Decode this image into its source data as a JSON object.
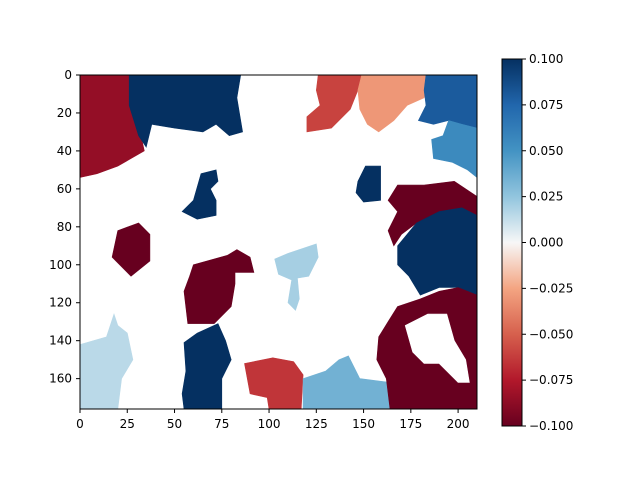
{
  "chart_data": {
    "type": "heatmap",
    "title": "",
    "xlabel": "",
    "ylabel": "",
    "colormap": "RdBu",
    "xlim": [
      0,
      210
    ],
    "ylim": [
      176,
      0
    ],
    "x_ticks": [
      0,
      25,
      50,
      75,
      100,
      125,
      150,
      175,
      200
    ],
    "y_ticks": [
      0,
      20,
      40,
      60,
      80,
      100,
      120,
      140,
      160
    ],
    "x_tick_labels": [
      "0",
      "25",
      "50",
      "75",
      "100",
      "125",
      "150",
      "175",
      "200"
    ],
    "y_tick_labels": [
      "0",
      "20",
      "40",
      "60",
      "80",
      "100",
      "120",
      "140",
      "160"
    ],
    "colorbar": {
      "range": [
        -0.1,
        0.1
      ],
      "ticks": [
        0.1,
        0.075,
        0.05,
        0.025,
        0.0,
        -0.025,
        -0.05,
        -0.075,
        -0.1
      ],
      "tick_labels": [
        "0.100",
        "0.075",
        "0.050",
        "0.025",
        "0.000",
        "−0.025",
        "−0.050",
        "−0.075",
        "−0.100"
      ]
    },
    "background_value": 0.0,
    "regions": [
      {
        "name": "top-left-red",
        "value": -0.085,
        "poly": [
          [
            0,
            0
          ],
          [
            29,
            0
          ],
          [
            26,
            14
          ],
          [
            31,
            26
          ],
          [
            34,
            40
          ],
          [
            20,
            48
          ],
          [
            9,
            52
          ],
          [
            0,
            54
          ]
        ]
      },
      {
        "name": "top-navy",
        "value": 0.1,
        "poly": [
          [
            26,
            0
          ],
          [
            85,
            0
          ],
          [
            83,
            12
          ],
          [
            86,
            30
          ],
          [
            79,
            32
          ],
          [
            72,
            26
          ],
          [
            65,
            30
          ],
          [
            50,
            28
          ],
          [
            38,
            26
          ],
          [
            35,
            38
          ],
          [
            31,
            32
          ],
          [
            26,
            16
          ]
        ]
      },
      {
        "name": "top-coral",
        "value": -0.06,
        "poly": [
          [
            126,
            0
          ],
          [
            149,
            0
          ],
          [
            147,
            8
          ],
          [
            143,
            18
          ],
          [
            133,
            28
          ],
          [
            120,
            30
          ],
          [
            120,
            22
          ],
          [
            127,
            16
          ],
          [
            125,
            8
          ]
        ]
      },
      {
        "name": "top-peach",
        "value": -0.03,
        "poly": [
          [
            149,
            0
          ],
          [
            183,
            0
          ],
          [
            182,
            12
          ],
          [
            173,
            16
          ],
          [
            166,
            24
          ],
          [
            158,
            30
          ],
          [
            152,
            26
          ],
          [
            148,
            18
          ],
          [
            147,
            8
          ]
        ]
      },
      {
        "name": "top-right-blue",
        "value": 0.08,
        "poly": [
          [
            183,
            0
          ],
          [
            210,
            0
          ],
          [
            210,
            28
          ],
          [
            202,
            26
          ],
          [
            195,
            24
          ],
          [
            187,
            26
          ],
          [
            179,
            24
          ],
          [
            183,
            16
          ],
          [
            182,
            8
          ]
        ]
      },
      {
        "name": "right-steel-blue",
        "value": 0.055,
        "poly": [
          [
            195,
            24
          ],
          [
            202,
            26
          ],
          [
            210,
            28
          ],
          [
            210,
            54
          ],
          [
            205,
            50
          ],
          [
            197,
            46
          ],
          [
            187,
            44
          ],
          [
            186,
            34
          ],
          [
            192,
            32
          ]
        ]
      },
      {
        "name": "small-navy-mid-left",
        "value": 0.1,
        "poly": [
          [
            64,
            52
          ],
          [
            72,
            50
          ],
          [
            73,
            56
          ],
          [
            69,
            60
          ],
          [
            72,
            66
          ],
          [
            72,
            74
          ],
          [
            62,
            76
          ],
          [
            54,
            72
          ],
          [
            60,
            66
          ]
        ]
      },
      {
        "name": "small-navy-center",
        "value": 0.1,
        "poly": [
          [
            151,
            48
          ],
          [
            159,
            48
          ],
          [
            159,
            66
          ],
          [
            150,
            67
          ],
          [
            146,
            62
          ],
          [
            147,
            56
          ]
        ]
      },
      {
        "name": "left-dark-red-blob",
        "value": -0.1,
        "poly": [
          [
            20,
            82
          ],
          [
            31,
            78
          ],
          [
            37,
            84
          ],
          [
            37,
            98
          ],
          [
            27,
            106
          ],
          [
            17,
            96
          ]
        ]
      },
      {
        "name": "center-dark-red",
        "value": -0.1,
        "poly": [
          [
            60,
            100
          ],
          [
            78,
            95
          ],
          [
            83,
            92
          ],
          [
            90,
            96
          ],
          [
            92,
            104
          ],
          [
            82,
            104
          ],
          [
            82,
            110
          ],
          [
            80,
            122
          ],
          [
            71,
            131
          ],
          [
            57,
            131
          ],
          [
            55,
            114
          ],
          [
            58,
            106
          ]
        ]
      },
      {
        "name": "center-light-blue",
        "value": 0.02,
        "poly": [
          [
            110,
            94
          ],
          [
            125,
            89
          ],
          [
            126,
            96
          ],
          [
            121,
            106
          ],
          [
            115,
            107
          ],
          [
            116,
            118
          ],
          [
            114,
            124
          ],
          [
            110,
            120
          ],
          [
            112,
            108
          ],
          [
            105,
            105
          ],
          [
            103,
            97
          ]
        ]
      },
      {
        "name": "bottom-left-light-blue",
        "value": 0.015,
        "poly": [
          [
            0,
            142
          ],
          [
            14,
            138
          ],
          [
            18,
            126
          ],
          [
            20,
            132
          ],
          [
            25,
            136
          ],
          [
            28,
            150
          ],
          [
            22,
            160
          ],
          [
            20,
            176
          ],
          [
            0,
            176
          ]
        ]
      },
      {
        "name": "bottom-left-navy",
        "value": 0.1,
        "poly": [
          [
            55,
            141
          ],
          [
            62,
            136
          ],
          [
            73,
            131
          ],
          [
            77,
            140
          ],
          [
            80,
            150
          ],
          [
            75,
            160
          ],
          [
            75,
            176
          ],
          [
            55,
            176
          ],
          [
            54,
            168
          ],
          [
            56,
            156
          ]
        ]
      },
      {
        "name": "bottom-coral",
        "value": -0.065,
        "poly": [
          [
            87,
            152
          ],
          [
            102,
            149
          ],
          [
            113,
            151
          ],
          [
            118,
            158
          ],
          [
            117,
            176
          ],
          [
            100,
            176
          ],
          [
            99,
            170
          ],
          [
            90,
            168
          ]
        ]
      },
      {
        "name": "bottom-light-blue",
        "value": 0.035,
        "poly": [
          [
            118,
            160
          ],
          [
            130,
            156
          ],
          [
            137,
            150
          ],
          [
            142,
            148
          ],
          [
            146,
            156
          ],
          [
            148,
            160
          ],
          [
            164,
            162
          ],
          [
            164,
            176
          ],
          [
            118,
            176
          ]
        ]
      },
      {
        "name": "right-dark-red-upper",
        "value": -0.1,
        "poly": [
          [
            168,
            58
          ],
          [
            182,
            58
          ],
          [
            198,
            56
          ],
          [
            210,
            64
          ],
          [
            210,
            74
          ],
          [
            202,
            70
          ],
          [
            190,
            72
          ],
          [
            178,
            78
          ],
          [
            170,
            84
          ],
          [
            166,
            90
          ],
          [
            163,
            82
          ],
          [
            168,
            72
          ],
          [
            163,
            66
          ]
        ]
      },
      {
        "name": "right-navy",
        "value": 0.1,
        "poly": [
          [
            178,
            78
          ],
          [
            190,
            72
          ],
          [
            202,
            70
          ],
          [
            210,
            74
          ],
          [
            210,
            116
          ],
          [
            200,
            112
          ],
          [
            190,
            112
          ],
          [
            180,
            116
          ],
          [
            174,
            106
          ],
          [
            168,
            100
          ],
          [
            168,
            90
          ]
        ]
      },
      {
        "name": "right-dark-red-lower",
        "value": -0.1,
        "poly": [
          [
            168,
            122
          ],
          [
            180,
            118
          ],
          [
            190,
            114
          ],
          [
            200,
            112
          ],
          [
            210,
            116
          ],
          [
            210,
            176
          ],
          [
            164,
            176
          ],
          [
            162,
            160
          ],
          [
            157,
            150
          ],
          [
            158,
            138
          ],
          [
            163,
            130
          ]
        ]
      }
    ],
    "holes": [
      {
        "name": "white-notch-in-lower-red",
        "value": 0.0,
        "poly": [
          [
            172,
            132
          ],
          [
            184,
            126
          ],
          [
            194,
            126
          ],
          [
            198,
            140
          ],
          [
            204,
            150
          ],
          [
            206,
            162
          ],
          [
            200,
            162
          ],
          [
            190,
            152
          ],
          [
            182,
            152
          ],
          [
            176,
            146
          ]
        ]
      }
    ]
  }
}
